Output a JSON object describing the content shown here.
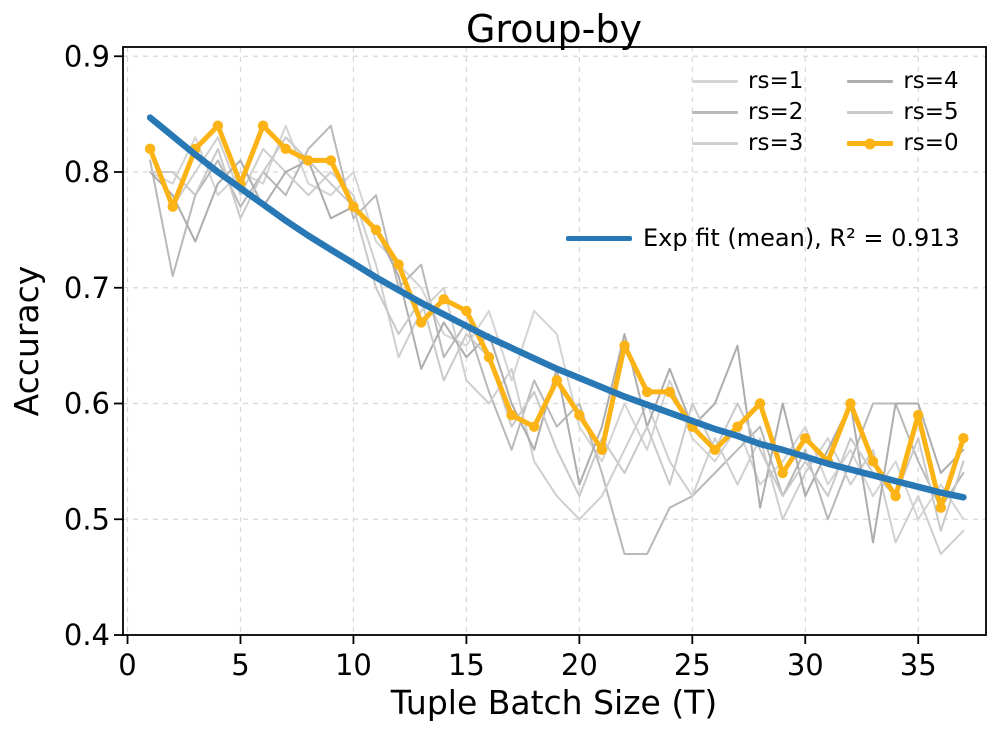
{
  "title": "Group-by",
  "axes": {
    "xlabel": "Tuple Batch Size (T)",
    "ylabel": "Accuracy"
  },
  "legend": {
    "runs": [
      {
        "label": "rs=1",
        "color": "#d4d4d4",
        "marker": false
      },
      {
        "label": "rs=2",
        "color": "#b9b9b9",
        "marker": false
      },
      {
        "label": "rs=3",
        "color": "#cfcfcf",
        "marker": false
      },
      {
        "label": "rs=4",
        "color": "#adadad",
        "marker": false
      },
      {
        "label": "rs=5",
        "color": "#c9c9c9",
        "marker": false
      },
      {
        "label": "rs=0",
        "color": "#fcb316",
        "marker": true
      }
    ],
    "fit_label": "Exp fit (mean), R² = 0.913"
  },
  "chart_data": {
    "type": "line",
    "title": "Group-by",
    "xlabel": "Tuple Batch Size (T)",
    "ylabel": "Accuracy",
    "grid": true,
    "legend_position": "upper right",
    "xlim": [
      -0.2,
      38.0
    ],
    "ylim": [
      0.4,
      0.908
    ],
    "xticks": [
      0,
      5,
      10,
      15,
      20,
      25,
      30,
      35
    ],
    "yticks": [
      0.4,
      0.5,
      0.6,
      0.7,
      0.8,
      0.9
    ],
    "x": [
      1,
      2,
      3,
      4,
      5,
      6,
      7,
      8,
      9,
      10,
      11,
      12,
      13,
      14,
      15,
      16,
      17,
      18,
      19,
      20,
      21,
      22,
      23,
      24,
      25,
      26,
      27,
      28,
      29,
      30,
      31,
      32,
      33,
      34,
      35,
      36,
      37
    ],
    "series": [
      {
        "name": "rs=1",
        "color": "#d4d4d4",
        "width": 2,
        "marker": false,
        "values": [
          0.8,
          0.79,
          0.83,
          0.78,
          0.8,
          0.79,
          0.84,
          0.79,
          0.78,
          0.8,
          0.74,
          0.72,
          0.7,
          0.66,
          0.65,
          0.68,
          0.62,
          0.68,
          0.66,
          0.58,
          0.55,
          0.6,
          0.56,
          0.62,
          0.57,
          0.55,
          0.58,
          0.53,
          0.55,
          0.58,
          0.53,
          0.56,
          0.52,
          0.55,
          0.5,
          0.53,
          0.5
        ]
      },
      {
        "name": "rs=2",
        "color": "#b9b9b9",
        "width": 2,
        "marker": false,
        "values": [
          0.81,
          0.71,
          0.78,
          0.81,
          0.77,
          0.8,
          0.78,
          0.82,
          0.84,
          0.76,
          0.78,
          0.7,
          0.72,
          0.64,
          0.67,
          0.61,
          0.56,
          0.62,
          0.58,
          0.6,
          0.54,
          0.47,
          0.47,
          0.51,
          0.52,
          0.54,
          0.56,
          0.58,
          0.52,
          0.56,
          0.5,
          0.55,
          0.6,
          0.6,
          0.55,
          0.51,
          0.54
        ]
      },
      {
        "name": "rs=3",
        "color": "#cfcfcf",
        "width": 2,
        "marker": false,
        "values": [
          0.82,
          0.77,
          0.8,
          0.83,
          0.78,
          0.82,
          0.8,
          0.78,
          0.8,
          0.78,
          0.72,
          0.64,
          0.68,
          0.7,
          0.62,
          0.6,
          0.63,
          0.55,
          0.52,
          0.5,
          0.52,
          0.56,
          0.6,
          0.55,
          0.52,
          0.57,
          0.53,
          0.57,
          0.5,
          0.54,
          0.57,
          0.53,
          0.56,
          0.48,
          0.52,
          0.47,
          0.49
        ]
      },
      {
        "name": "rs=4",
        "color": "#adadad",
        "width": 2,
        "marker": false,
        "values": [
          0.8,
          0.78,
          0.74,
          0.79,
          0.81,
          0.77,
          0.8,
          0.81,
          0.76,
          0.77,
          0.75,
          0.71,
          0.63,
          0.67,
          0.64,
          0.66,
          0.6,
          0.56,
          0.63,
          0.53,
          0.58,
          0.66,
          0.58,
          0.63,
          0.58,
          0.6,
          0.65,
          0.51,
          0.6,
          0.52,
          0.56,
          0.6,
          0.48,
          0.6,
          0.6,
          0.54,
          0.56
        ]
      },
      {
        "name": "rs=5",
        "color": "#c9c9c9",
        "width": 2,
        "marker": false,
        "values": [
          0.8,
          0.8,
          0.78,
          0.82,
          0.76,
          0.8,
          0.83,
          0.81,
          0.79,
          0.77,
          0.7,
          0.66,
          0.69,
          0.62,
          0.66,
          0.64,
          0.58,
          0.61,
          0.56,
          0.52,
          0.57,
          0.54,
          0.58,
          0.53,
          0.6,
          0.56,
          0.6,
          0.56,
          0.52,
          0.55,
          0.52,
          0.57,
          0.54,
          0.52,
          0.57,
          0.49,
          0.55
        ]
      },
      {
        "name": "rs=0",
        "color": "#fcb316",
        "width": 5,
        "marker": true,
        "values": [
          0.82,
          0.77,
          0.82,
          0.84,
          0.79,
          0.84,
          0.82,
          0.81,
          0.81,
          0.77,
          0.75,
          0.72,
          0.67,
          0.69,
          0.68,
          0.64,
          0.59,
          0.58,
          0.62,
          0.59,
          0.56,
          0.65,
          0.61,
          0.61,
          0.58,
          0.56,
          0.58,
          0.6,
          0.54,
          0.57,
          0.55,
          0.6,
          0.55,
          0.52,
          0.59,
          0.51,
          0.57
        ]
      }
    ],
    "fit": {
      "name": "Exp fit (mean)",
      "r_squared": 0.913,
      "color": "#2878b5",
      "width": 6.5,
      "values": [
        0.847,
        0.831,
        0.815,
        0.8,
        0.786,
        0.772,
        0.758,
        0.745,
        0.733,
        0.721,
        0.709,
        0.698,
        0.687,
        0.677,
        0.667,
        0.657,
        0.648,
        0.639,
        0.63,
        0.622,
        0.614,
        0.606,
        0.599,
        0.592,
        0.585,
        0.578,
        0.572,
        0.565,
        0.56,
        0.554,
        0.548,
        0.543,
        0.538,
        0.533,
        0.528,
        0.523,
        0.519
      ]
    }
  }
}
